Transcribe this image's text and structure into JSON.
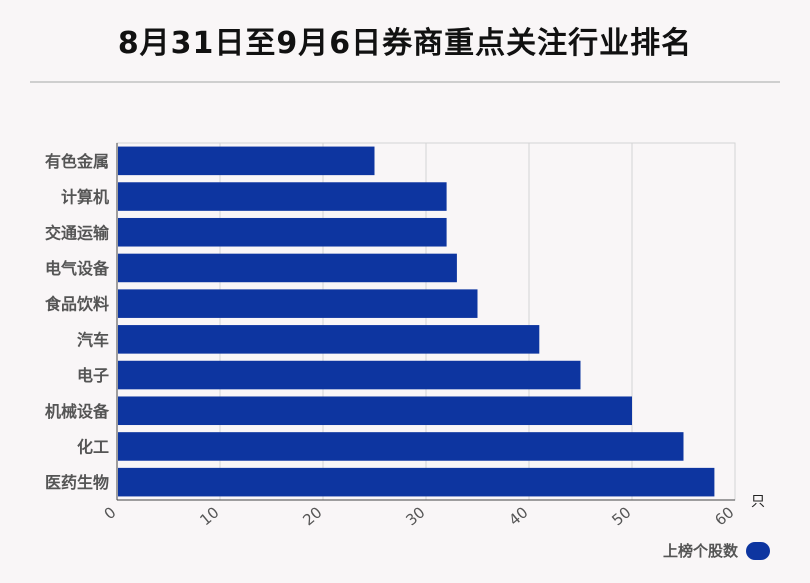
{
  "title": "8月31日至9月6日券商重点关注行业排名",
  "legend": {
    "label": "上榜个股数"
  },
  "chart_data": {
    "type": "bar",
    "orientation": "horizontal",
    "title": "8月31日至9月6日券商重点关注行业排名",
    "categories": [
      "有色金属",
      "计算机",
      "交通运输",
      "电气设备",
      "食品饮料",
      "汽车",
      "电子",
      "机械设备",
      "化工",
      "医药生物"
    ],
    "series": [
      {
        "name": "上榜个股数",
        "values": [
          25,
          32,
          32,
          33,
          35,
          41,
          45,
          50,
          55,
          58
        ],
        "color": "#0d35a0"
      }
    ],
    "xlim": [
      0,
      60
    ],
    "xticks": [
      "0",
      "10",
      "20",
      "30",
      "40",
      "50",
      "60"
    ],
    "xunit": "只",
    "grid": true,
    "legend_position": "bottom-right"
  }
}
